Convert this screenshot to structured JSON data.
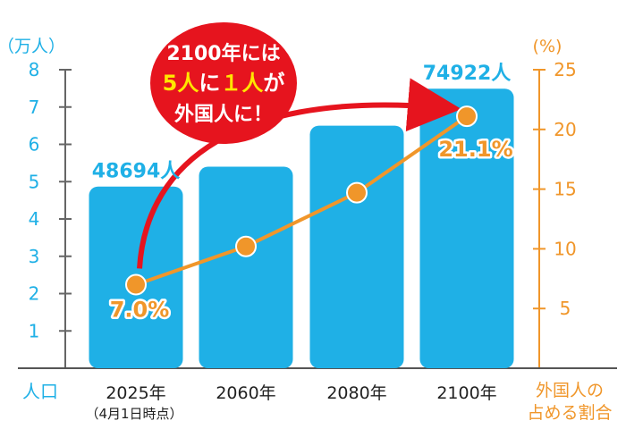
{
  "chart_data": {
    "type": "bar",
    "categories": [
      "2025年",
      "2060年",
      "2080年",
      "2100年"
    ],
    "category_note": "（4月1日時点）",
    "series": [
      {
        "name": "人口",
        "values": [
          4.8694,
          5.4,
          6.5,
          7.4922
        ],
        "labels": [
          "48694人",
          "",
          "",
          "74922人"
        ],
        "axis": "left",
        "color": "#1fb0e6",
        "kind": "bar"
      },
      {
        "name": "外国人の占める割合",
        "values": [
          7.0,
          10.2,
          14.7,
          21.1
        ],
        "labels": [
          "7.0%",
          "",
          "",
          "21.1%"
        ],
        "axis": "right",
        "color": "#f0962a",
        "kind": "line"
      }
    ],
    "left_axis": {
      "unit": "（万人）",
      "label": "人口",
      "ylim": [
        0,
        8
      ],
      "ticks": [
        "1",
        "2",
        "3",
        "4",
        "5",
        "6",
        "7",
        "8"
      ]
    },
    "right_axis": {
      "unit": "(%)",
      "label_lines": [
        "外国人の",
        "占める割合"
      ],
      "ylim": [
        0,
        25
      ],
      "ticks": [
        "5",
        "10",
        "15",
        "20",
        "25"
      ]
    },
    "callout": {
      "line1": "2100年には",
      "line2_parts": [
        "5人",
        "に",
        "１人",
        "が"
      ],
      "line3": "外国人に！"
    },
    "colors": {
      "bar": "#1fb0e6",
      "line": "#f0962a",
      "callout": "#e6141e",
      "arrow": "#e6141e",
      "axis": "#666666"
    }
  }
}
